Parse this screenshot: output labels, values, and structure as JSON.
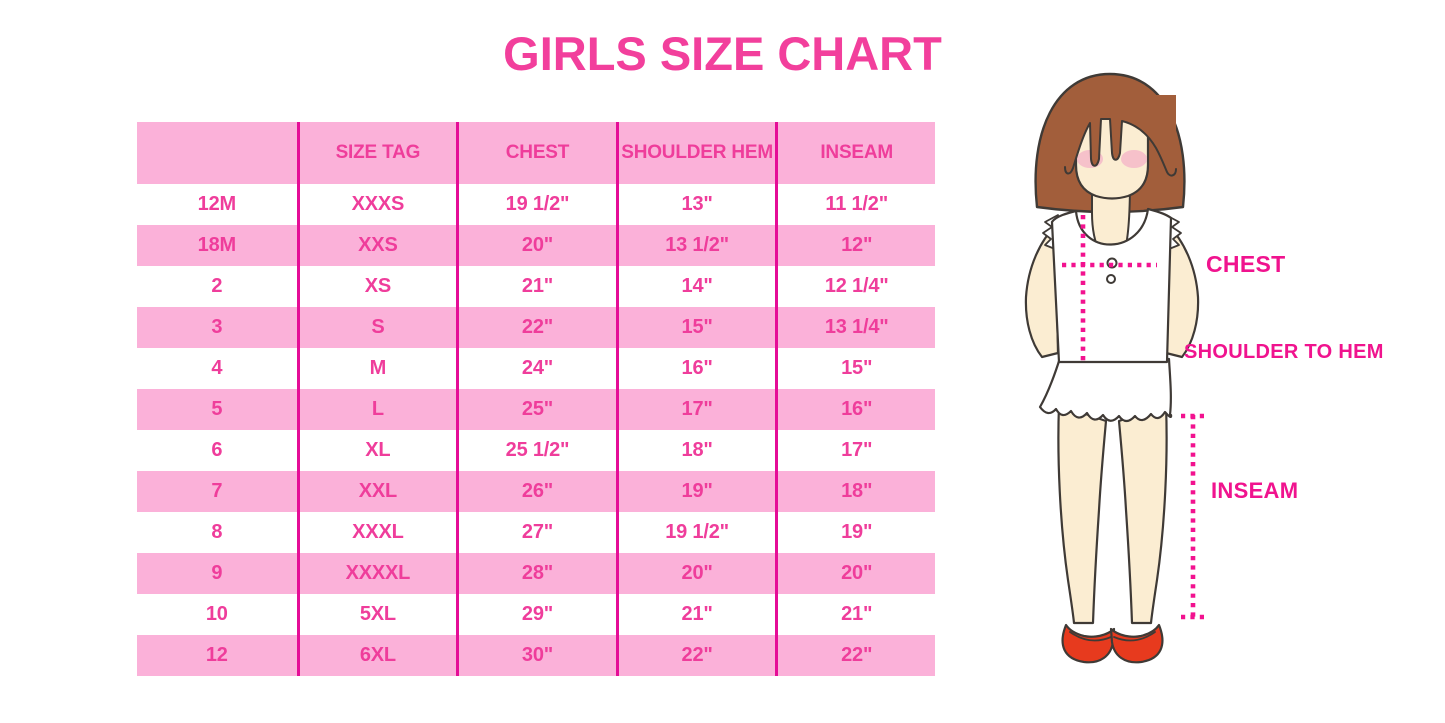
{
  "title": "GIRLS SIZE CHART",
  "chart_data": {
    "type": "table",
    "title": "GIRLS SIZE CHART",
    "columns": [
      "",
      "SIZE TAG",
      "CHEST",
      "SHOULDER HEM",
      "INSEAM"
    ],
    "rows": [
      [
        "12M",
        "XXXS",
        "19 1/2\"",
        "13\"",
        "11 1/2\""
      ],
      [
        "18M",
        "XXS",
        "20\"",
        "13 1/2\"",
        "12\""
      ],
      [
        "2",
        "XS",
        "21\"",
        "14\"",
        "12 1/4\""
      ],
      [
        "3",
        "S",
        "22\"",
        "15\"",
        "13 1/4\""
      ],
      [
        "4",
        "M",
        "24\"",
        "16\"",
        "15\""
      ],
      [
        "5",
        "L",
        "25\"",
        "17\"",
        "16\""
      ],
      [
        "6",
        "XL",
        "25 1/2\"",
        "18\"",
        "17\""
      ],
      [
        "7",
        "XXL",
        "26\"",
        "19\"",
        "18\""
      ],
      [
        "8",
        "XXXL",
        "27\"",
        "19 1/2\"",
        "19\""
      ],
      [
        "9",
        "XXXXL",
        "28\"",
        "20\"",
        "20\""
      ],
      [
        "10",
        "5XL",
        "29\"",
        "21\"",
        "21\""
      ],
      [
        "12",
        "6XL",
        "30\"",
        "22\"",
        "22\""
      ]
    ],
    "layout_hints": {
      "row_striping": "header and alternate rows pink, others white",
      "column_dividers": "magenta vertical lines"
    }
  },
  "diagram": {
    "chest_label": "CHEST",
    "shoulder_to_hem_label": "SHOULDER TO HEM",
    "inseam_label": "INSEAM"
  },
  "colors": {
    "title_pink": "#F23F9C",
    "row_pink": "#FBB1D9",
    "table_text_magenta": "#EF3D9B",
    "column_divider": "#E50D97",
    "dotted_measure_line": "#F2128F",
    "hair_brown": "#A25E3B",
    "skin_cream": "#FBEDD2",
    "shoe_red": "#E73A1E"
  }
}
